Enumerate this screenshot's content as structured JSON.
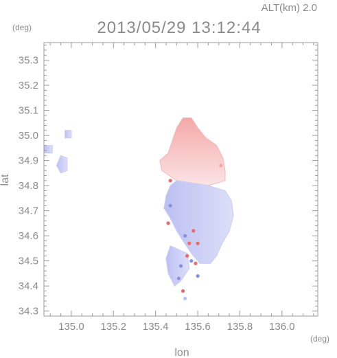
{
  "header": {
    "altitude_label": "ALT(km) 2.0",
    "timestamp": "2013/05/29 13:12:44"
  },
  "colors": {
    "axis": "#9a9a9a",
    "text": "#8a8a8a",
    "positive": "#f4a8a8",
    "positive_strong": "#e86a6a",
    "negative": "#bcc0f2",
    "negative_light": "#dcdff8",
    "negative_strong": "#8a8ee8"
  },
  "chart_data": {
    "type": "heatmap",
    "title": "2013/05/29 13:12:44",
    "subtitle": "ALT(km) 2.0",
    "xlabel": "lon",
    "ylabel": "lat",
    "xunit": "(deg)",
    "yunit": "(deg)",
    "xlim": [
      134.87,
      136.17
    ],
    "ylim": [
      34.28,
      35.37
    ],
    "xticks": [
      135.0,
      135.2,
      135.4,
      135.6,
      135.8,
      136.0
    ],
    "yticks": [
      34.3,
      34.4,
      34.5,
      34.6,
      34.7,
      34.8,
      34.9,
      35.0,
      35.1,
      35.2,
      35.3
    ],
    "xtick_labels": [
      "135.0",
      "135.2",
      "135.4",
      "135.6",
      "135.8",
      "136.0"
    ],
    "ytick_labels": [
      "34.3",
      "34.4",
      "34.5",
      "34.6",
      "34.7",
      "34.8",
      "34.9",
      "35.0",
      "35.1",
      "35.2",
      "35.3"
    ],
    "grid": false,
    "regions": [
      {
        "sign": "positive",
        "polygon": [
          [
            135.53,
            35.07
          ],
          [
            135.57,
            35.07
          ],
          [
            135.6,
            35.03
          ],
          [
            135.64,
            34.99
          ],
          [
            135.69,
            34.96
          ],
          [
            135.72,
            34.91
          ],
          [
            135.73,
            34.86
          ],
          [
            135.73,
            34.82
          ],
          [
            135.65,
            34.8
          ],
          [
            135.5,
            34.82
          ],
          [
            135.43,
            34.86
          ],
          [
            135.42,
            34.9
          ],
          [
            135.46,
            34.93
          ],
          [
            135.48,
            34.98
          ],
          [
            135.5,
            35.03
          ]
        ]
      },
      {
        "sign": "negative",
        "polygon": [
          [
            135.5,
            34.82
          ],
          [
            135.65,
            34.8
          ],
          [
            135.73,
            34.78
          ],
          [
            135.76,
            34.74
          ],
          [
            135.77,
            34.68
          ],
          [
            135.75,
            34.62
          ],
          [
            135.71,
            34.56
          ],
          [
            135.69,
            34.52
          ],
          [
            135.66,
            34.49
          ],
          [
            135.61,
            34.49
          ],
          [
            135.57,
            34.53
          ],
          [
            135.53,
            34.58
          ],
          [
            135.5,
            34.62
          ],
          [
            135.47,
            34.67
          ],
          [
            135.44,
            34.71
          ],
          [
            135.45,
            34.76
          ],
          [
            135.47,
            34.8
          ]
        ]
      },
      {
        "sign": "negative",
        "polygon": [
          [
            135.47,
            34.56
          ],
          [
            135.55,
            34.53
          ],
          [
            135.56,
            34.47
          ],
          [
            135.52,
            34.42
          ],
          [
            135.49,
            34.4
          ],
          [
            135.46,
            34.45
          ],
          [
            135.45,
            34.51
          ]
        ]
      },
      {
        "sign": "negative",
        "polygon": [
          [
            134.95,
            34.92
          ],
          [
            134.98,
            34.91
          ],
          [
            134.98,
            34.86
          ],
          [
            134.95,
            34.85
          ],
          [
            134.93,
            34.88
          ]
        ]
      },
      {
        "sign": "negative",
        "polygon": [
          [
            134.87,
            34.96
          ],
          [
            134.91,
            34.96
          ],
          [
            134.91,
            34.93
          ],
          [
            134.87,
            34.93
          ]
        ]
      },
      {
        "sign": "negative",
        "polygon": [
          [
            134.97,
            35.02
          ],
          [
            135.0,
            35.02
          ],
          [
            135.0,
            34.99
          ],
          [
            134.97,
            34.99
          ]
        ]
      }
    ],
    "spots": [
      {
        "lon": 135.58,
        "lat": 34.62,
        "sign": "positive_strong"
      },
      {
        "lon": 135.56,
        "lat": 34.57,
        "sign": "positive_strong"
      },
      {
        "lon": 135.6,
        "lat": 34.57,
        "sign": "positive_strong"
      },
      {
        "lon": 135.55,
        "lat": 34.52,
        "sign": "positive_strong"
      },
      {
        "lon": 135.59,
        "lat": 34.49,
        "sign": "positive_strong"
      },
      {
        "lon": 135.46,
        "lat": 34.65,
        "sign": "positive_strong"
      },
      {
        "lon": 135.53,
        "lat": 34.38,
        "sign": "positive_strong"
      },
      {
        "lon": 135.47,
        "lat": 34.82,
        "sign": "positive_strong"
      },
      {
        "lon": 135.71,
        "lat": 34.88,
        "sign": "positive"
      },
      {
        "lon": 135.54,
        "lat": 34.6,
        "sign": "negative_strong"
      },
      {
        "lon": 135.57,
        "lat": 34.5,
        "sign": "negative_strong"
      },
      {
        "lon": 135.52,
        "lat": 34.48,
        "sign": "negative_strong"
      },
      {
        "lon": 135.6,
        "lat": 34.44,
        "sign": "negative_strong"
      },
      {
        "lon": 135.51,
        "lat": 34.43,
        "sign": "negative_strong"
      },
      {
        "lon": 135.54,
        "lat": 34.35,
        "sign": "negative"
      },
      {
        "lon": 135.47,
        "lat": 34.72,
        "sign": "negative_strong"
      }
    ]
  }
}
